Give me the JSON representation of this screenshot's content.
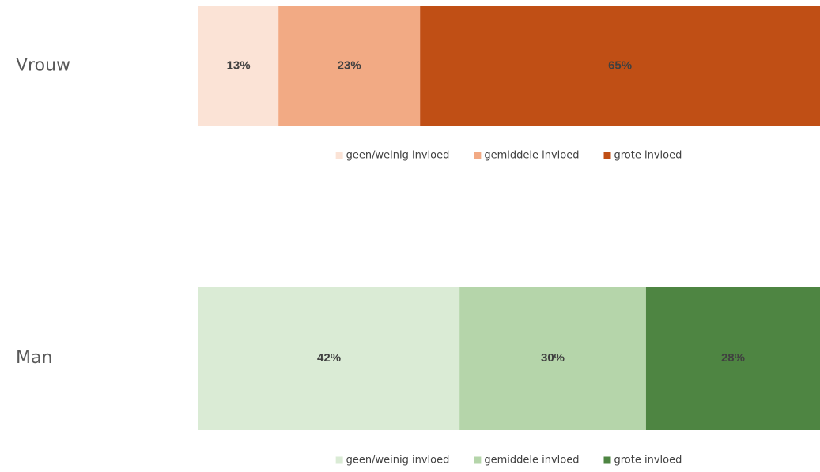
{
  "chart_data": [
    {
      "type": "bar",
      "orientation": "horizontal",
      "stacked": true,
      "categories": [
        "Vrouw"
      ],
      "xlim": [
        0,
        101
      ],
      "legend": "bottom",
      "series": [
        {
          "name": "geen/weinig invloed",
          "color": "#fbe3d6",
          "values": [
            13
          ],
          "value_labels": [
            "13%"
          ]
        },
        {
          "name": "gemiddele invloed",
          "color": "#f2aa84",
          "values": [
            23
          ],
          "value_labels": [
            "23%"
          ]
        },
        {
          "name": "grote invloed",
          "color": "#c04f15",
          "values": [
            65
          ],
          "value_labels": [
            "65%"
          ]
        }
      ]
    },
    {
      "type": "bar",
      "orientation": "horizontal",
      "stacked": true,
      "categories": [
        "Man"
      ],
      "xlim": [
        0,
        100
      ],
      "legend": "bottom",
      "series": [
        {
          "name": "geen/weinig invloed",
          "color": "#daebd5",
          "values": [
            42
          ],
          "value_labels": [
            "42%"
          ]
        },
        {
          "name": "gemiddele invloed",
          "color": "#b5d5aa",
          "values": [
            30
          ],
          "value_labels": [
            "30%"
          ]
        },
        {
          "name": "grote invloed",
          "color": "#4e8542",
          "values": [
            28
          ],
          "value_labels": [
            "28%"
          ]
        }
      ]
    }
  ]
}
